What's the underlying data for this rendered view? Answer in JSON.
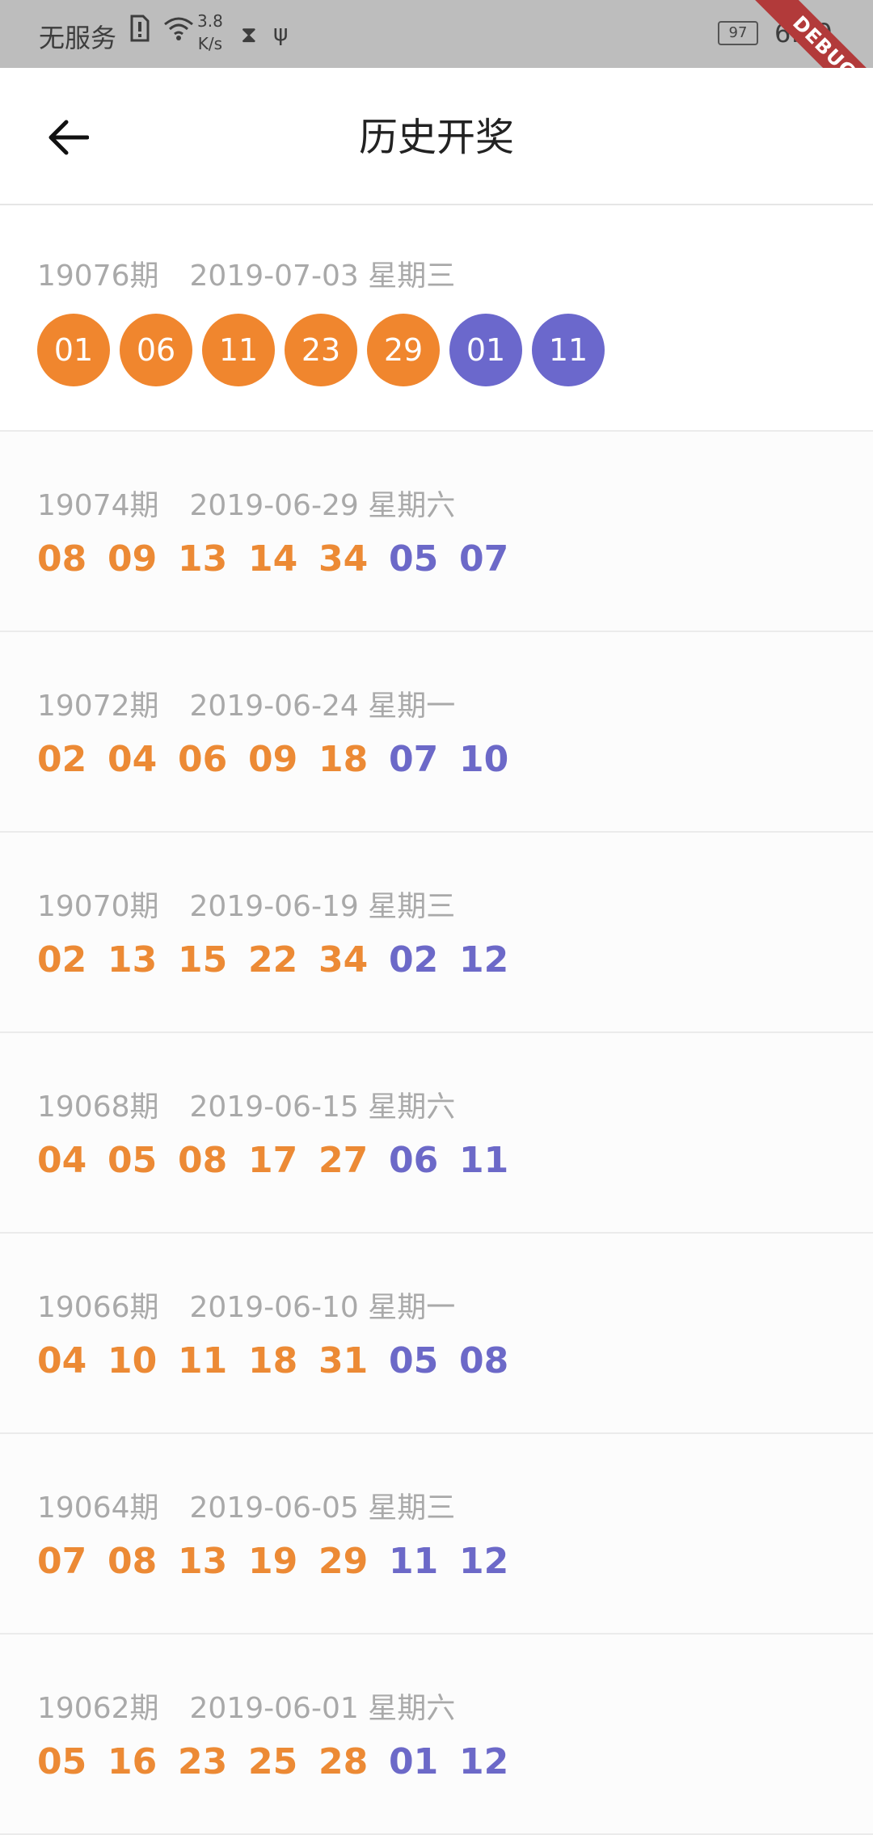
{
  "status_bar": {
    "carrier": "无服务",
    "net_speed_value": "3.8",
    "net_speed_unit": "K/s",
    "battery": "97",
    "time": "6:09"
  },
  "debug_banner": "DEBUG",
  "header": {
    "title": "历史开奖"
  },
  "colors": {
    "red_ball": "#f0862e",
    "blue_ball": "#6b68cc",
    "meta_text": "#a9a9a9"
  },
  "draws": [
    {
      "issue": "19076期",
      "date": "2019-07-03 星期三",
      "red": [
        "01",
        "06",
        "11",
        "23",
        "29"
      ],
      "blue": [
        "01",
        "11"
      ]
    },
    {
      "issue": "19074期",
      "date": "2019-06-29 星期六",
      "red": [
        "08",
        "09",
        "13",
        "14",
        "34"
      ],
      "blue": [
        "05",
        "07"
      ]
    },
    {
      "issue": "19072期",
      "date": "2019-06-24 星期一",
      "red": [
        "02",
        "04",
        "06",
        "09",
        "18"
      ],
      "blue": [
        "07",
        "10"
      ]
    },
    {
      "issue": "19070期",
      "date": "2019-06-19 星期三",
      "red": [
        "02",
        "13",
        "15",
        "22",
        "34"
      ],
      "blue": [
        "02",
        "12"
      ]
    },
    {
      "issue": "19068期",
      "date": "2019-06-15 星期六",
      "red": [
        "04",
        "05",
        "08",
        "17",
        "27"
      ],
      "blue": [
        "06",
        "11"
      ]
    },
    {
      "issue": "19066期",
      "date": "2019-06-10 星期一",
      "red": [
        "04",
        "10",
        "11",
        "18",
        "31"
      ],
      "blue": [
        "05",
        "08"
      ]
    },
    {
      "issue": "19064期",
      "date": "2019-06-05 星期三",
      "red": [
        "07",
        "08",
        "13",
        "19",
        "29"
      ],
      "blue": [
        "11",
        "12"
      ]
    },
    {
      "issue": "19062期",
      "date": "2019-06-01 星期六",
      "red": [
        "05",
        "16",
        "23",
        "25",
        "28"
      ],
      "blue": [
        "01",
        "12"
      ]
    }
  ]
}
